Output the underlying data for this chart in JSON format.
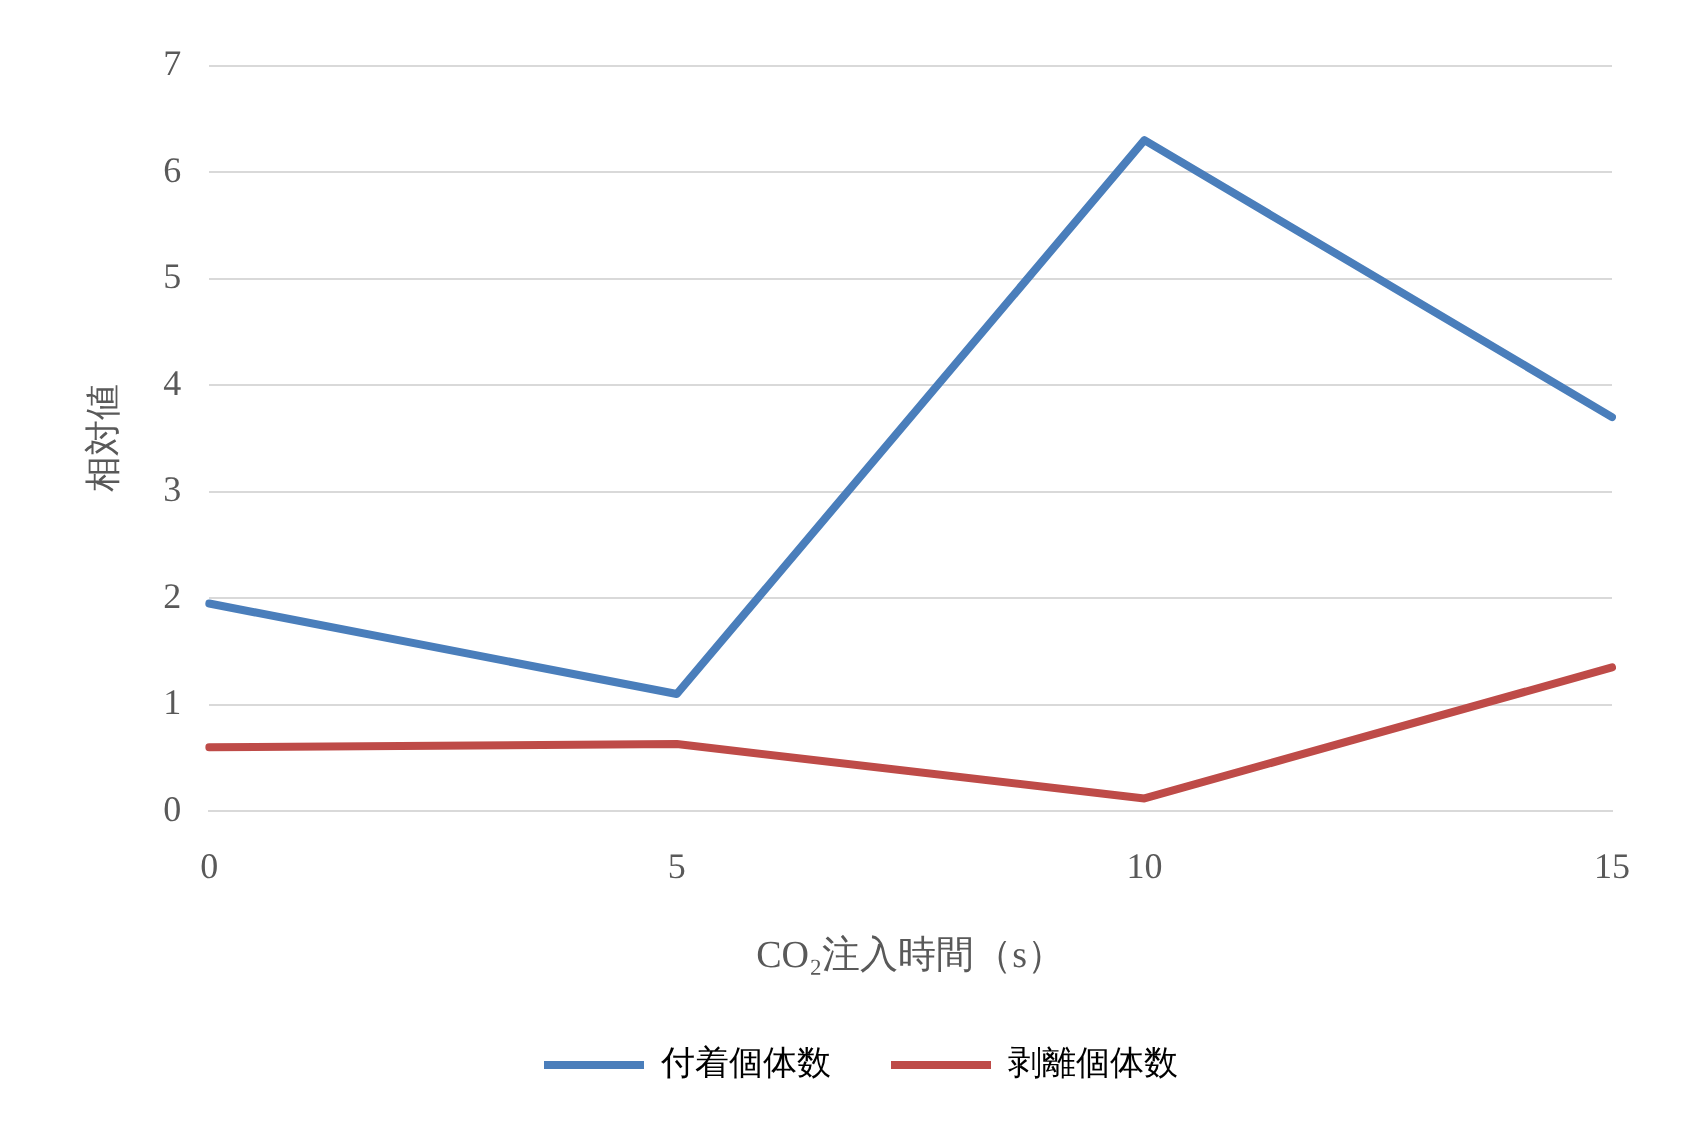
{
  "chart_data": {
    "type": "line",
    "xlabel": "CO₂注入時間（s）",
    "ylabel": "相対値",
    "categories": [
      "0",
      "5",
      "10",
      "15"
    ],
    "series": [
      {
        "name": "付着個体数",
        "color": "#4a7ebb",
        "values": [
          1.95,
          1.1,
          6.3,
          3.7
        ]
      },
      {
        "name": "剥離個体数",
        "color": "#be4b48",
        "values": [
          0.6,
          0.63,
          0.12,
          1.35
        ]
      }
    ],
    "ylim": [
      0,
      7
    ],
    "yticks": [
      0,
      1,
      2,
      3,
      4,
      5,
      6,
      7
    ],
    "grid": "y",
    "legend": "bottom",
    "marker": "none",
    "line_style": "solid"
  }
}
